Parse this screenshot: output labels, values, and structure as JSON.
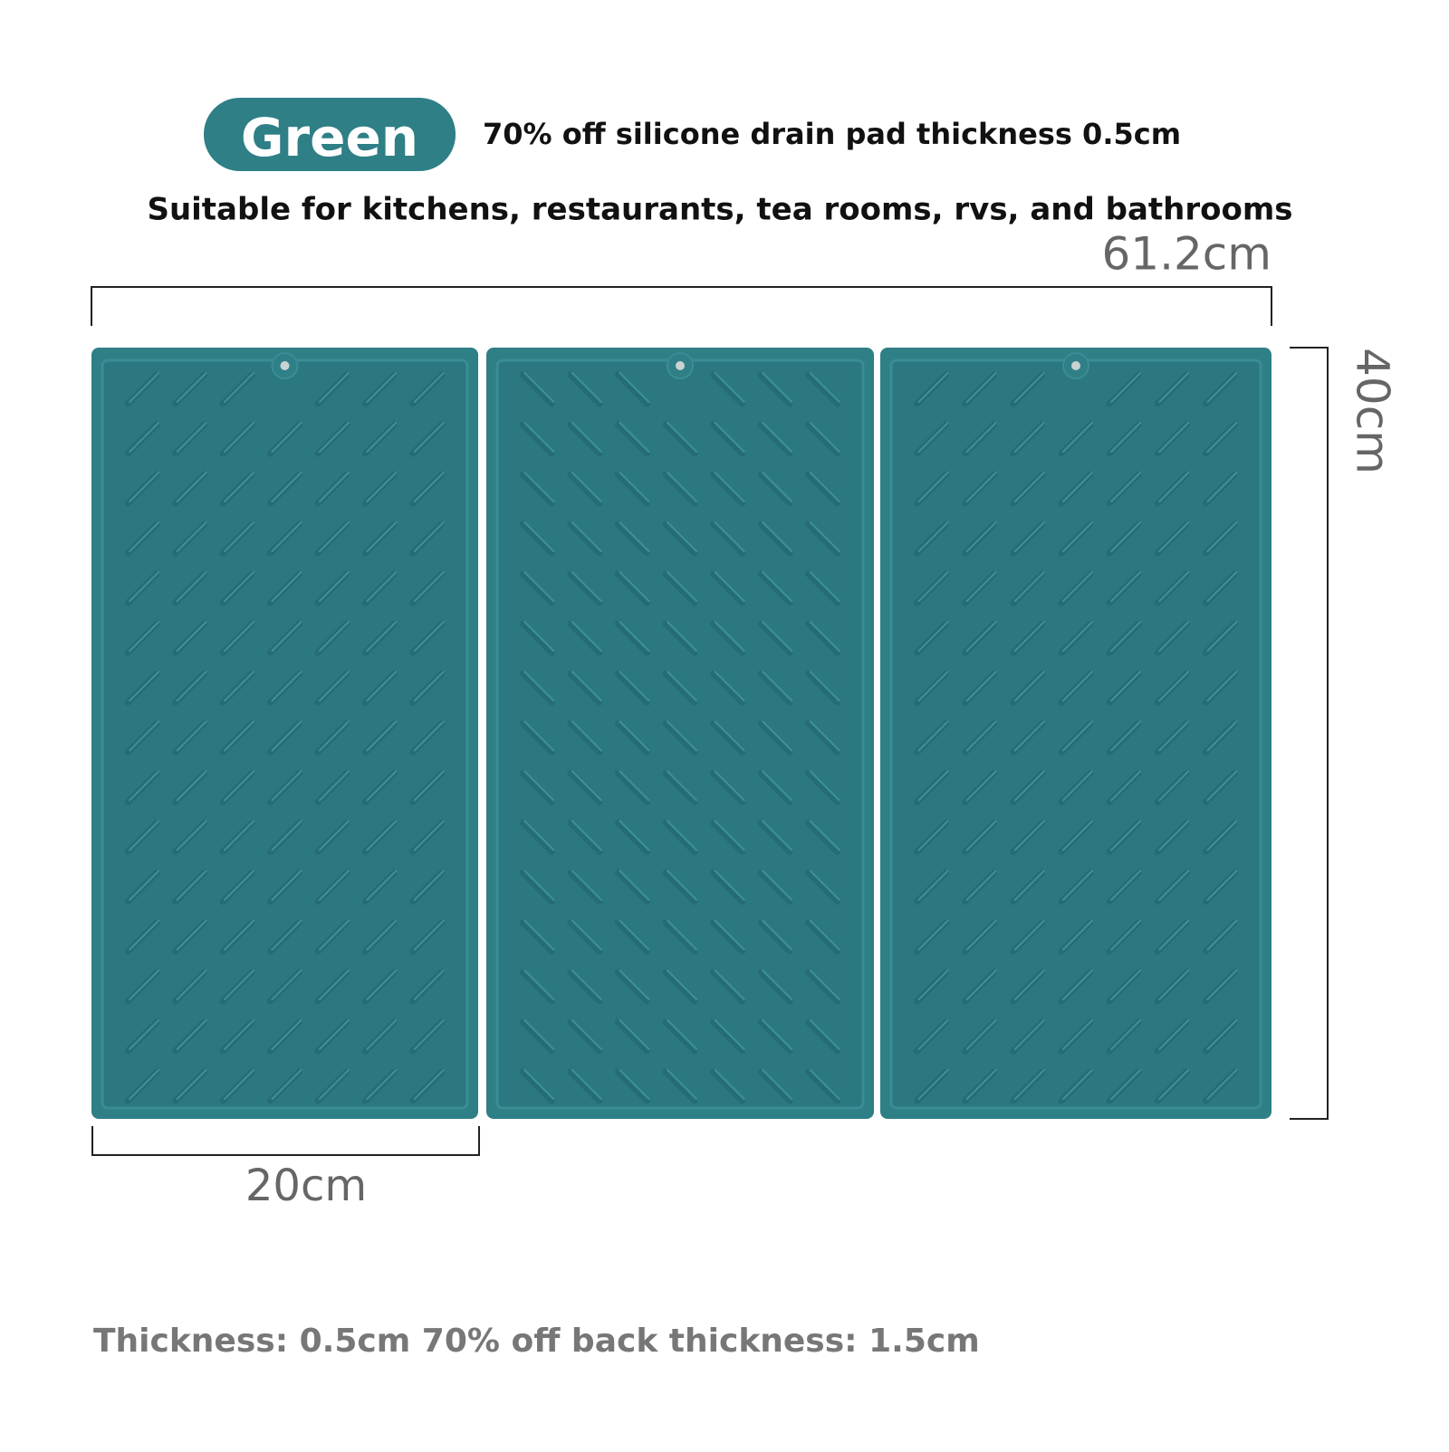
{
  "badge": "Green",
  "headline": "70% off silicone drain pad thickness 0.5cm",
  "subtitle": "Suitable for kitchens, restaurants, tea rooms, rvs, and bathrooms",
  "dimensions": {
    "width": "61.2cm",
    "height": "40cm",
    "panel_width": "20cm"
  },
  "footer": "Thickness: 0.5cm 70% off back thickness: 1.5cm"
}
